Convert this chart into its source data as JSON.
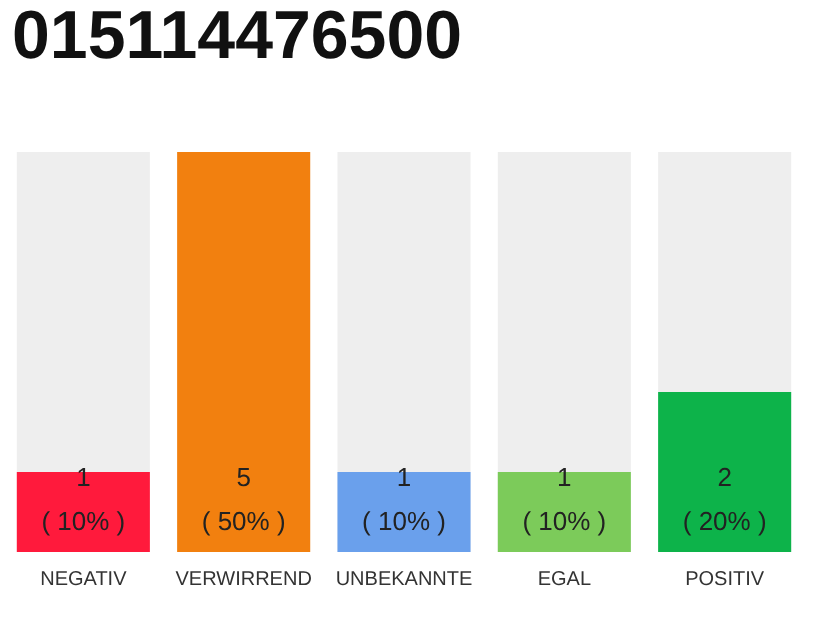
{
  "chart_data": {
    "type": "bar",
    "title": "015114476500",
    "categories": [
      "NEGATIV",
      "VERWIRREND",
      "UNBEKANNTE",
      "EGAL",
      "POSITIV"
    ],
    "values": [
      1,
      5,
      1,
      1,
      2
    ],
    "colors": [
      "#ff1a3c",
      "#f2800f",
      "#6aa0ec",
      "#7ccb5a",
      "#0db34a"
    ],
    "value_labels": [
      "1\n( 10% )",
      "5\n( 50% )",
      "1\n( 10% )",
      "1\n( 10% )",
      "2\n( 20% )"
    ],
    "grid": false
  }
}
